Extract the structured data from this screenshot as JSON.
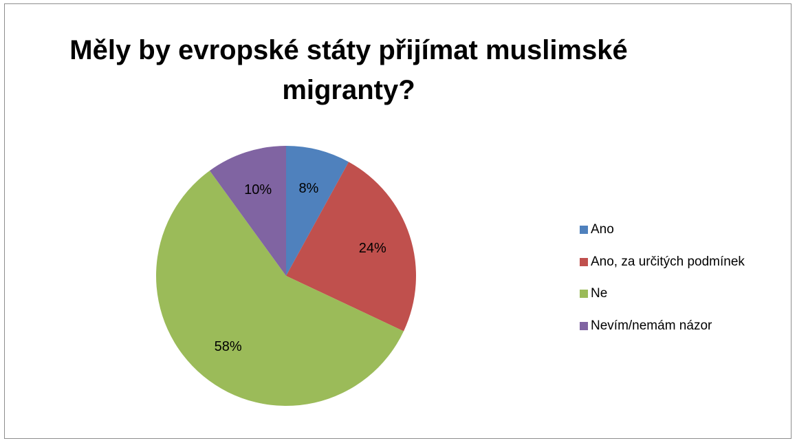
{
  "chart_data": {
    "type": "pie",
    "title": "Měly by evropské státy přijímat muslimské migranty?",
    "title_lines": [
      "Měly by evropské státy přijímat muslimské",
      "migranty?"
    ],
    "categories": [
      "Ano",
      "Ano, za určitých podmínek",
      "Ne",
      "Nevím/nemám názor"
    ],
    "values": [
      8,
      24,
      58,
      10
    ],
    "data_labels": [
      "8%",
      "24%",
      "58%",
      "10%"
    ],
    "colors": [
      "#4F81BD",
      "#C0504D",
      "#9BBB59",
      "#8064A2"
    ],
    "legend_position": "right"
  }
}
